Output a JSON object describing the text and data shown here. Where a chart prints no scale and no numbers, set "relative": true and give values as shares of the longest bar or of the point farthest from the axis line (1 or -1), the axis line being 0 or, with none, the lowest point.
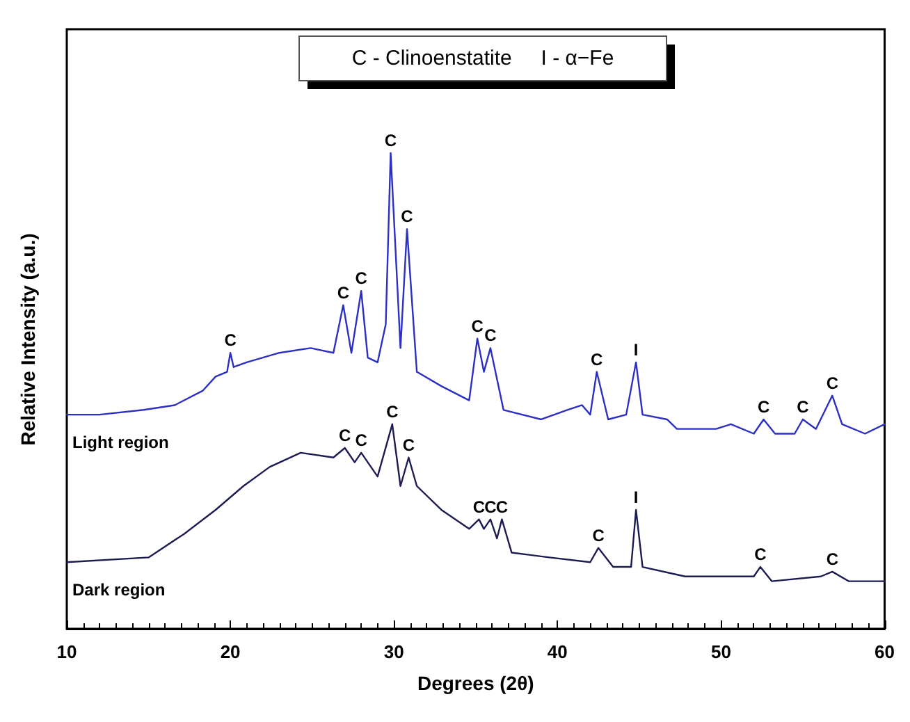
{
  "chart_data": {
    "type": "line",
    "relative": true,
    "xlabel": "Degrees (2θ)",
    "ylabel": "Relative Intensity (a.u.)",
    "xlim": [
      10,
      60
    ],
    "xticks": [
      10,
      20,
      30,
      40,
      50,
      60
    ],
    "grid": false,
    "legend": false,
    "marker": "none",
    "line_style": "solid",
    "series": [
      {
        "name": "Light region",
        "color": "#2b30c2",
        "x": [
          10,
          12,
          14.7,
          16.6,
          18.3,
          19.1,
          19.8,
          20.0,
          20.2,
          21.0,
          23.0,
          24.9,
          26.3,
          26.9,
          27.4,
          28.0,
          28.4,
          29.0,
          29.5,
          29.8,
          30.4,
          30.8,
          31.4,
          32.9,
          34.6,
          35.1,
          35.5,
          35.9,
          36.7,
          39.0,
          40.6,
          41.5,
          42.0,
          42.4,
          43.1,
          44.2,
          44.8,
          45.2,
          46.7,
          47.3,
          49.7,
          50.6,
          52.0,
          52.6,
          53.3,
          54.5,
          55.0,
          55.8,
          56.8,
          57.4,
          58.8,
          60
        ],
        "values": [
          0.45,
          0.45,
          0.46,
          0.47,
          0.5,
          0.53,
          0.54,
          0.58,
          0.55,
          0.56,
          0.58,
          0.59,
          0.58,
          0.68,
          0.58,
          0.71,
          0.57,
          0.56,
          0.64,
          1.0,
          0.59,
          0.84,
          0.54,
          0.51,
          0.48,
          0.61,
          0.54,
          0.59,
          0.46,
          0.44,
          0.46,
          0.47,
          0.45,
          0.54,
          0.44,
          0.45,
          0.56,
          0.45,
          0.44,
          0.42,
          0.42,
          0.43,
          0.41,
          0.44,
          0.41,
          0.41,
          0.44,
          0.42,
          0.49,
          0.43,
          0.41,
          0.43
        ]
      },
      {
        "name": "Dark region",
        "color": "#1c1c52",
        "x": [
          10,
          15.0,
          17.2,
          19.1,
          20.8,
          22.4,
          24.3,
          26.3,
          27.0,
          27.6,
          28.0,
          29.0,
          29.9,
          30.4,
          30.9,
          31.4,
          32.9,
          34.6,
          35.2,
          35.5,
          35.9,
          36.3,
          36.6,
          37.2,
          39.5,
          42.0,
          42.5,
          43.4,
          44.5,
          44.8,
          45.2,
          47.8,
          52.0,
          52.4,
          53.1,
          56.1,
          56.8,
          57.8,
          60
        ],
        "values": [
          0.14,
          0.15,
          0.2,
          0.25,
          0.3,
          0.34,
          0.37,
          0.36,
          0.38,
          0.35,
          0.37,
          0.32,
          0.43,
          0.3,
          0.36,
          0.3,
          0.25,
          0.21,
          0.23,
          0.21,
          0.23,
          0.19,
          0.23,
          0.16,
          0.15,
          0.14,
          0.17,
          0.13,
          0.13,
          0.25,
          0.13,
          0.11,
          0.11,
          0.13,
          0.1,
          0.11,
          0.12,
          0.1,
          0.1
        ]
      }
    ],
    "annotations": [
      "C - Clinoenstatite     I - α−Fe",
      {
        "text": "C",
        "x": 20.0,
        "y": 0.58
      },
      {
        "text": "C",
        "x": 26.9,
        "y": 0.68
      },
      {
        "text": "C",
        "x": 28.0,
        "y": 0.71
      },
      {
        "text": "C",
        "x": 29.8,
        "y": 1.0
      },
      {
        "text": "C",
        "x": 30.8,
        "y": 0.84
      },
      {
        "text": "C",
        "x": 35.1,
        "y": 0.61
      },
      {
        "text": "C",
        "x": 35.9,
        "y": 0.59
      },
      {
        "text": "C",
        "x": 42.4,
        "y": 0.54
      },
      {
        "text": "I",
        "x": 44.8,
        "y": 0.56
      },
      {
        "text": "C",
        "x": 52.6,
        "y": 0.44
      },
      {
        "text": "C",
        "x": 55.0,
        "y": 0.44
      },
      {
        "text": "C",
        "x": 56.8,
        "y": 0.49
      },
      {
        "text": "C",
        "x": 27.0,
        "y": 0.38
      },
      {
        "text": "C",
        "x": 28.0,
        "y": 0.37
      },
      {
        "text": "C",
        "x": 29.9,
        "y": 0.43
      },
      {
        "text": "C",
        "x": 30.9,
        "y": 0.36
      },
      {
        "text": "C",
        "x": 35.2,
        "y": 0.23
      },
      {
        "text": "C",
        "x": 35.9,
        "y": 0.23
      },
      {
        "text": "C",
        "x": 36.6,
        "y": 0.23
      },
      {
        "text": "C",
        "x": 42.5,
        "y": 0.17
      },
      {
        "text": "I",
        "x": 44.8,
        "y": 0.25
      },
      {
        "text": "C",
        "x": 52.4,
        "y": 0.13
      },
      {
        "text": "C",
        "x": 56.8,
        "y": 0.12
      }
    ]
  }
}
